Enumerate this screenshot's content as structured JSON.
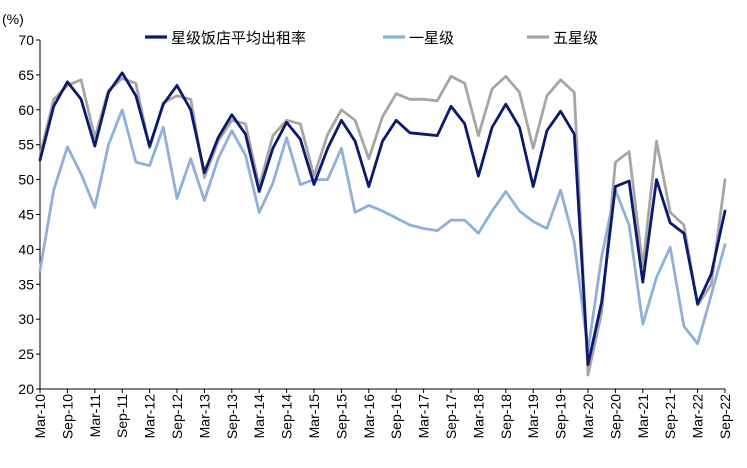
{
  "chart_data": {
    "type": "line",
    "ylabel": "(%)",
    "ylim": [
      20,
      70
    ],
    "yticks": [
      20,
      25,
      30,
      35,
      40,
      45,
      50,
      55,
      60,
      65,
      70
    ],
    "grid": false,
    "legend_position": "top",
    "xtick_labels": [
      "Mar-10",
      "Sep-10",
      "Mar-11",
      "Sep-11",
      "Mar-12",
      "Sep-12",
      "Mar-13",
      "Sep-13",
      "Mar-14",
      "Sep-14",
      "Mar-15",
      "Sep-15",
      "Mar-16",
      "Sep-16",
      "Mar-17",
      "Sep-17",
      "Mar-18",
      "Sep-18",
      "Mar-19",
      "Sep-19",
      "Mar-20",
      "Sep-20",
      "Mar-21",
      "Sep-21",
      "Mar-22",
      "Sep-22"
    ],
    "x": [
      "2010-03",
      "2010-04",
      "2010-05",
      "2010-06",
      "2010-07",
      "2010-08",
      "2010-09",
      "2010-10",
      "2010-11",
      "2010-12",
      "2011-01",
      "2011-02",
      "2011-03",
      "2011-04",
      "2011-05",
      "2011-06",
      "2011-07",
      "2011-08",
      "2011-09",
      "2011-10",
      "2011-11",
      "2011-12",
      "2012-01",
      "2012-02",
      "2012-03",
      "2012-04",
      "2012-05",
      "2012-06",
      "2012-07",
      "2012-08",
      "2012-09",
      "2012-10",
      "2012-11",
      "2012-12",
      "2013-01",
      "2013-02",
      "2013-03",
      "2013-04",
      "2013-05",
      "2013-06",
      "2013-07",
      "2013-08",
      "2013-09",
      "2013-10",
      "2013-11",
      "2013-12",
      "2014-01",
      "2014-02",
      "2014-03",
      "2014-04",
      "2014-05",
      "2014-06",
      "2014-07",
      "2014-08",
      "2014-09",
      "2014-10",
      "2014-11",
      "2014-12",
      "2015-01",
      "2015-02",
      "2015-03",
      "2015-04",
      "2015-05",
      "2015-06",
      "2015-07",
      "2015-08",
      "2015-09",
      "2015-10",
      "2015-11",
      "2015-12",
      "2016-01",
      "2016-02",
      "2016-03",
      "2016-04",
      "2016-05",
      "2016-06",
      "2016-07",
      "2016-08",
      "2016-09",
      "2016-10",
      "2016-11",
      "2016-12",
      "2017-01",
      "2017-02",
      "2017-03",
      "2017-04",
      "2017-05",
      "2017-06",
      "2017-07",
      "2017-08",
      "2017-09",
      "2017-10",
      "2017-11",
      "2017-12",
      "2018-01",
      "2018-02",
      "2018-03",
      "2018-04",
      "2018-05",
      "2018-06",
      "2018-07",
      "2018-08",
      "2018-09",
      "2018-10",
      "2018-11",
      "2018-12",
      "2019-01",
      "2019-02",
      "2019-03",
      "2019-04",
      "2019-05",
      "2019-06",
      "2019-07",
      "2019-08",
      "2019-09",
      "2019-10",
      "2019-11",
      "2019-12",
      "2020-01",
      "2020-02",
      "2020-03",
      "2020-04",
      "2020-05",
      "2020-06",
      "2020-07",
      "2020-08",
      "2020-09",
      "2020-10",
      "2020-11",
      "2020-12",
      "2021-01",
      "2021-02",
      "2021-03",
      "2021-04",
      "2021-05",
      "2021-06",
      "2021-07",
      "2021-08",
      "2021-09",
      "2021-10",
      "2021-11",
      "2021-12",
      "2022-01",
      "2022-02",
      "2022-03",
      "2022-04",
      "2022-05",
      "2022-06",
      "2022-07",
      "2022-08",
      "2022-09"
    ],
    "series": [
      {
        "name": "星级饭店平均出租率",
        "color": "#0b1a6e",
        "width": 2.8,
        "points": [
          [
            "2010-03",
            52.8
          ],
          [
            "2010-06",
            60.5
          ],
          [
            "2010-09",
            64.0
          ],
          [
            "2010-12",
            61.5
          ],
          [
            "2011-03",
            54.8
          ],
          [
            "2011-06",
            62.5
          ],
          [
            "2011-09",
            65.3
          ],
          [
            "2011-12",
            62.0
          ],
          [
            "2012-03",
            54.8
          ],
          [
            "2012-06",
            60.8
          ],
          [
            "2012-09",
            63.5
          ],
          [
            "2012-12",
            60.0
          ],
          [
            "2013-03",
            51.0
          ],
          [
            "2013-06",
            56.0
          ],
          [
            "2013-09",
            59.3
          ],
          [
            "2013-12",
            56.5
          ],
          [
            "2014-03",
            48.3
          ],
          [
            "2014-06",
            54.5
          ],
          [
            "2014-09",
            58.2
          ],
          [
            "2014-12",
            55.8
          ],
          [
            "2015-03",
            49.3
          ],
          [
            "2015-06",
            54.5
          ],
          [
            "2015-09",
            58.5
          ],
          [
            "2015-12",
            55.5
          ],
          [
            "2016-03",
            49.0
          ],
          [
            "2016-06",
            55.5
          ],
          [
            "2016-09",
            58.5
          ],
          [
            "2016-12",
            56.7
          ],
          [
            "2017-03",
            56.5
          ],
          [
            "2017-06",
            56.3
          ],
          [
            "2017-09",
            60.5
          ],
          [
            "2017-12",
            58.0
          ],
          [
            "2018-03",
            50.5
          ],
          [
            "2018-06",
            57.5
          ],
          [
            "2018-09",
            60.8
          ],
          [
            "2018-12",
            57.5
          ],
          [
            "2019-03",
            49.0
          ],
          [
            "2019-06",
            57.0
          ],
          [
            "2019-09",
            59.8
          ],
          [
            "2019-12",
            56.5
          ],
          [
            "2020-03",
            23.5
          ],
          [
            "2020-06",
            32.5
          ],
          [
            "2020-09",
            49.0
          ],
          [
            "2020-12",
            49.8
          ],
          [
            "2021-03",
            35.3
          ],
          [
            "2021-06",
            50.0
          ],
          [
            "2021-09",
            43.8
          ],
          [
            "2021-12",
            42.3
          ],
          [
            "2022-03",
            32.2
          ],
          [
            "2022-06",
            36.5
          ],
          [
            "2022-09",
            45.5
          ]
        ]
      },
      {
        "name": "一星级",
        "color": "#8fb0d8",
        "width": 2.8,
        "points": [
          [
            "2010-03",
            37.0
          ],
          [
            "2010-06",
            48.5
          ],
          [
            "2010-09",
            54.7
          ],
          [
            "2010-12",
            50.8
          ],
          [
            "2011-03",
            46.0
          ],
          [
            "2011-06",
            55.0
          ],
          [
            "2011-09",
            60.0
          ],
          [
            "2011-12",
            52.5
          ],
          [
            "2012-03",
            52.0
          ],
          [
            "2012-06",
            57.5
          ],
          [
            "2012-09",
            47.3
          ],
          [
            "2012-12",
            53.0
          ],
          [
            "2013-03",
            47.0
          ],
          [
            "2013-06",
            53.0
          ],
          [
            "2013-09",
            57.0
          ],
          [
            "2013-12",
            53.5
          ],
          [
            "2014-03",
            45.3
          ],
          [
            "2014-06",
            49.5
          ],
          [
            "2014-09",
            56.0
          ],
          [
            "2014-12",
            49.3
          ],
          [
            "2015-03",
            50.0
          ],
          [
            "2015-06",
            50.0
          ],
          [
            "2015-09",
            54.5
          ],
          [
            "2015-12",
            45.3
          ],
          [
            "2016-03",
            46.3
          ],
          [
            "2016-06",
            45.5
          ],
          [
            "2016-09",
            44.5
          ],
          [
            "2016-12",
            43.5
          ],
          [
            "2017-03",
            43.0
          ],
          [
            "2017-06",
            42.7
          ],
          [
            "2017-09",
            44.2
          ],
          [
            "2017-12",
            44.2
          ],
          [
            "2018-03",
            42.3
          ],
          [
            "2018-06",
            45.5
          ],
          [
            "2018-09",
            48.3
          ],
          [
            "2018-12",
            45.5
          ],
          [
            "2019-03",
            44.0
          ],
          [
            "2019-06",
            43.0
          ],
          [
            "2019-09",
            48.5
          ],
          [
            "2019-12",
            41.0
          ],
          [
            "2020-03",
            25.5
          ],
          [
            "2020-06",
            39.0
          ],
          [
            "2020-09",
            48.5
          ],
          [
            "2020-12",
            43.5
          ],
          [
            "2021-03",
            29.3
          ],
          [
            "2021-06",
            36.0
          ],
          [
            "2021-09",
            40.3
          ],
          [
            "2021-12",
            29.0
          ],
          [
            "2022-03",
            26.5
          ],
          [
            "2022-06",
            33.5
          ],
          [
            "2022-09",
            40.7
          ]
        ]
      },
      {
        "name": "五星级",
        "color": "#a6a6a6",
        "width": 2.8,
        "points": [
          [
            "2010-03",
            53.5
          ],
          [
            "2010-06",
            61.5
          ],
          [
            "2010-09",
            63.5
          ],
          [
            "2010-12",
            64.3
          ],
          [
            "2011-03",
            56.0
          ],
          [
            "2011-06",
            62.8
          ],
          [
            "2011-09",
            64.5
          ],
          [
            "2011-12",
            63.8
          ],
          [
            "2012-03",
            54.5
          ],
          [
            "2012-06",
            61.0
          ],
          [
            "2012-09",
            62.0
          ],
          [
            "2012-12",
            61.5
          ],
          [
            "2013-03",
            50.3
          ],
          [
            "2013-06",
            55.5
          ],
          [
            "2013-09",
            58.5
          ],
          [
            "2013-12",
            58.0
          ],
          [
            "2014-03",
            49.0
          ],
          [
            "2014-06",
            56.3
          ],
          [
            "2014-09",
            58.5
          ],
          [
            "2014-12",
            58.0
          ],
          [
            "2015-03",
            50.5
          ],
          [
            "2015-06",
            56.5
          ],
          [
            "2015-09",
            60.0
          ],
          [
            "2015-12",
            58.5
          ],
          [
            "2016-03",
            53.0
          ],
          [
            "2016-06",
            59.0
          ],
          [
            "2016-09",
            62.3
          ],
          [
            "2016-12",
            61.5
          ],
          [
            "2017-03",
            61.5
          ],
          [
            "2017-06",
            61.3
          ],
          [
            "2017-09",
            64.8
          ],
          [
            "2017-12",
            63.8
          ],
          [
            "2018-03",
            56.3
          ],
          [
            "2018-06",
            63.0
          ],
          [
            "2018-09",
            64.8
          ],
          [
            "2018-12",
            62.5
          ],
          [
            "2019-03",
            54.5
          ],
          [
            "2019-06",
            62.0
          ],
          [
            "2019-09",
            64.3
          ],
          [
            "2019-12",
            62.5
          ],
          [
            "2020-03",
            22.0
          ],
          [
            "2020-06",
            31.0
          ],
          [
            "2020-09",
            52.5
          ],
          [
            "2020-12",
            54.0
          ],
          [
            "2021-03",
            37.5
          ],
          [
            "2021-06",
            55.5
          ],
          [
            "2021-09",
            45.3
          ],
          [
            "2021-12",
            43.5
          ],
          [
            "2022-03",
            32.0
          ],
          [
            "2022-06",
            35.0
          ],
          [
            "2022-09",
            50.0
          ]
        ]
      }
    ]
  }
}
